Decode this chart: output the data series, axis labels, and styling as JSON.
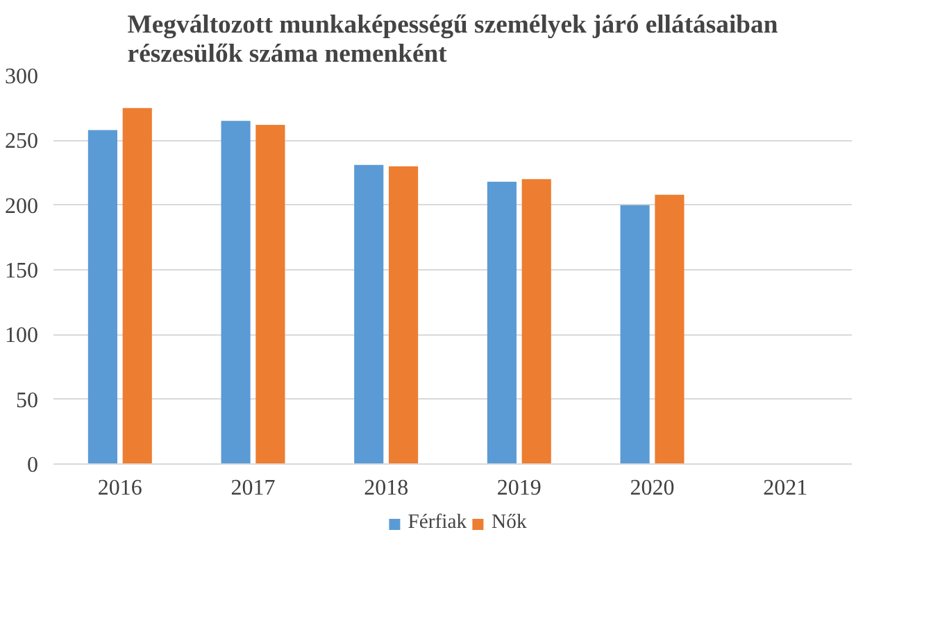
{
  "chart_data": {
    "type": "bar",
    "title": "Megváltozott munkaképességű személyek járó ellátásaiban\nrészesülők száma nemenként",
    "categories": [
      "2016",
      "2017",
      "2018",
      "2019",
      "2020",
      "2021"
    ],
    "series": [
      {
        "name": "Férfiak",
        "color": "#5b9bd5",
        "values": [
          258,
          265,
          231,
          218,
          200,
          null
        ]
      },
      {
        "name": "Nők",
        "color": "#ed7d31",
        "values": [
          275,
          262,
          230,
          220,
          208,
          null
        ]
      }
    ],
    "ylim": [
      0,
      300
    ],
    "yticks": [
      0,
      50,
      100,
      150,
      200,
      250,
      300
    ],
    "grid": "y",
    "legend": "bottom"
  }
}
